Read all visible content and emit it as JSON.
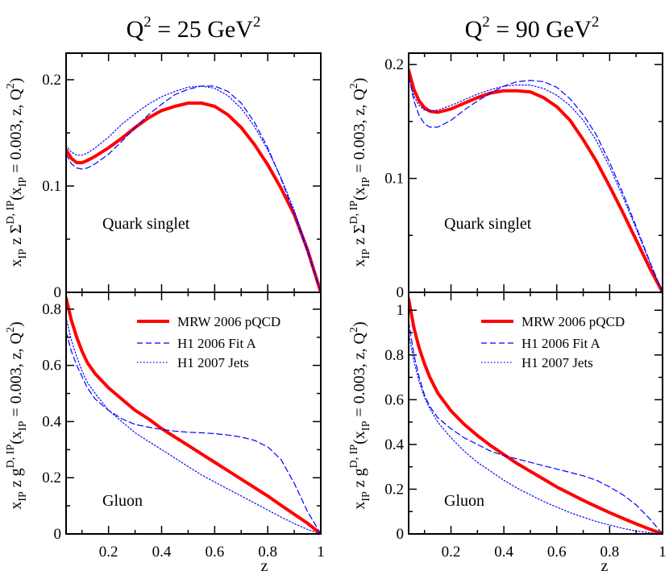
{
  "columns": [
    {
      "q2_value": "25",
      "title_text": " = 25 GeV"
    },
    {
      "q2_value": "90",
      "title_text": " = 90 GeV"
    }
  ],
  "labels": {
    "q": "Q",
    "sq": "2",
    "x_axis": "z",
    "quark_panel": "Quark singlet",
    "gluon_panel": "Gluon",
    "ylab_top_main": "x",
    "ylab_top_sub": "IP",
    "ylab_top_mid": " z Σ",
    "ylab_top_sup": "D, IP",
    "ylab_top_args": "(x",
    "ylab_top_args_sub": "IP",
    "ylab_top_args_rest": " = 0.003, z, Q",
    "ylab_top_args_sup": "2",
    "ylab_top_close": ")",
    "ylab_bot_mid": " z g"
  },
  "legend": [
    {
      "label": "MRW 2006 pQCD",
      "style": "thick-solid",
      "color": "#ff0000"
    },
    {
      "label": "H1 2006 Fit A",
      "style": "dashed",
      "color": "#0000ff"
    },
    {
      "label": "H1 2007 Jets",
      "style": "dotted",
      "color": "#0000ff"
    }
  ],
  "chart_data": [
    {
      "type": "line",
      "panel": "quark-25",
      "title": "Q² = 25 GeV²",
      "panel_label": "Quark singlet",
      "xlabel": "z",
      "ylabel": "x_IP z Σ^{D,IP}(x_IP = 0.003, z, Q²)",
      "xlim": [
        0.04,
        1.0
      ],
      "ylim": [
        0,
        0.225
      ],
      "xticks": [
        0.2,
        0.4,
        0.6,
        0.8,
        1
      ],
      "xtick_labels": [
        "",
        "",
        "",
        "",
        ""
      ],
      "yticks": [
        0,
        0.1,
        0.2
      ],
      "ytick_labels": [
        "0",
        "0.1",
        "0.2"
      ],
      "series": [
        {
          "name": "MRW 2006 pQCD",
          "x": [
            0.04,
            0.06,
            0.08,
            0.1,
            0.12,
            0.15,
            0.2,
            0.25,
            0.3,
            0.35,
            0.4,
            0.45,
            0.5,
            0.55,
            0.6,
            0.65,
            0.7,
            0.75,
            0.8,
            0.85,
            0.9,
            0.95,
            1.0
          ],
          "y": [
            0.134,
            0.126,
            0.122,
            0.122,
            0.124,
            0.128,
            0.136,
            0.145,
            0.155,
            0.164,
            0.171,
            0.175,
            0.178,
            0.178,
            0.175,
            0.167,
            0.155,
            0.139,
            0.12,
            0.098,
            0.073,
            0.04,
            0.0
          ]
        },
        {
          "name": "H1 2006 Fit A",
          "x": [
            0.04,
            0.06,
            0.08,
            0.1,
            0.12,
            0.15,
            0.2,
            0.25,
            0.3,
            0.35,
            0.4,
            0.45,
            0.5,
            0.55,
            0.6,
            0.65,
            0.7,
            0.75,
            0.8,
            0.85,
            0.9,
            0.95,
            1.0
          ],
          "y": [
            0.13,
            0.121,
            0.117,
            0.116,
            0.117,
            0.121,
            0.13,
            0.142,
            0.155,
            0.167,
            0.177,
            0.186,
            0.191,
            0.194,
            0.194,
            0.189,
            0.178,
            0.16,
            0.136,
            0.107,
            0.074,
            0.038,
            0.0
          ]
        },
        {
          "name": "H1 2007 Jets",
          "x": [
            0.04,
            0.06,
            0.08,
            0.1,
            0.12,
            0.15,
            0.2,
            0.25,
            0.3,
            0.35,
            0.4,
            0.45,
            0.5,
            0.55,
            0.6,
            0.65,
            0.7,
            0.75,
            0.8,
            0.85,
            0.9,
            0.95,
            1.0
          ],
          "y": [
            0.138,
            0.132,
            0.129,
            0.129,
            0.131,
            0.136,
            0.146,
            0.158,
            0.168,
            0.177,
            0.184,
            0.189,
            0.193,
            0.194,
            0.192,
            0.185,
            0.173,
            0.156,
            0.134,
            0.108,
            0.077,
            0.041,
            0.0
          ]
        }
      ]
    },
    {
      "type": "line",
      "panel": "quark-90",
      "title": "Q² = 90 GeV²",
      "panel_label": "Quark singlet",
      "xlabel": "z",
      "ylabel": "x_IP z Σ^{D,IP}(x_IP = 0.003, z, Q²)",
      "xlim": [
        0.04,
        1.0
      ],
      "ylim": [
        0,
        0.21
      ],
      "xticks": [
        0.2,
        0.4,
        0.6,
        0.8,
        1
      ],
      "xtick_labels": [
        "",
        "",
        "",
        "",
        ""
      ],
      "yticks": [
        0,
        0.1,
        0.2
      ],
      "ytick_labels": [
        "0",
        "0.1",
        "0.2"
      ],
      "series": [
        {
          "name": "MRW 2006 pQCD",
          "x": [
            0.04,
            0.06,
            0.08,
            0.1,
            0.12,
            0.15,
            0.2,
            0.25,
            0.3,
            0.35,
            0.4,
            0.45,
            0.5,
            0.55,
            0.6,
            0.65,
            0.7,
            0.75,
            0.8,
            0.85,
            0.9,
            0.95,
            1.0
          ],
          "y": [
            0.195,
            0.178,
            0.168,
            0.162,
            0.159,
            0.158,
            0.161,
            0.166,
            0.171,
            0.175,
            0.177,
            0.177,
            0.176,
            0.171,
            0.163,
            0.151,
            0.134,
            0.115,
            0.093,
            0.07,
            0.046,
            0.022,
            0.0
          ]
        },
        {
          "name": "H1 2006 Fit A",
          "x": [
            0.04,
            0.06,
            0.08,
            0.1,
            0.12,
            0.15,
            0.2,
            0.25,
            0.3,
            0.35,
            0.4,
            0.45,
            0.5,
            0.55,
            0.6,
            0.65,
            0.7,
            0.75,
            0.8,
            0.85,
            0.9,
            0.95,
            1.0
          ],
          "y": [
            0.19,
            0.168,
            0.155,
            0.148,
            0.145,
            0.145,
            0.151,
            0.16,
            0.168,
            0.175,
            0.181,
            0.185,
            0.186,
            0.185,
            0.18,
            0.17,
            0.156,
            0.138,
            0.114,
            0.087,
            0.058,
            0.028,
            0.0
          ]
        },
        {
          "name": "H1 2007 Jets",
          "x": [
            0.04,
            0.06,
            0.08,
            0.1,
            0.12,
            0.15,
            0.2,
            0.25,
            0.3,
            0.35,
            0.4,
            0.45,
            0.5,
            0.55,
            0.6,
            0.65,
            0.7,
            0.75,
            0.8,
            0.85,
            0.9,
            0.95,
            1.0
          ],
          "y": [
            0.188,
            0.172,
            0.164,
            0.16,
            0.159,
            0.16,
            0.164,
            0.169,
            0.174,
            0.178,
            0.181,
            0.182,
            0.182,
            0.179,
            0.173,
            0.164,
            0.151,
            0.133,
            0.11,
            0.084,
            0.056,
            0.027,
            0.0
          ]
        }
      ]
    },
    {
      "type": "line",
      "panel": "gluon-25",
      "title": "",
      "panel_label": "Gluon",
      "xlabel": "z",
      "ylabel": "x_IP z g^{D,IP}(x_IP = 0.003, z, Q²)",
      "xlim": [
        0.04,
        1.0
      ],
      "ylim": [
        0,
        0.86
      ],
      "xticks": [
        0.2,
        0.4,
        0.6,
        0.8,
        1
      ],
      "xtick_labels": [
        "0.2",
        "0.4",
        "0.6",
        "0.8",
        "1"
      ],
      "yticks": [
        0,
        0.2,
        0.4,
        0.6,
        0.8
      ],
      "ytick_labels": [
        "0",
        "0.2",
        "0.4",
        "0.6",
        "0.8"
      ],
      "series": [
        {
          "name": "MRW 2006 pQCD",
          "x": [
            0.04,
            0.06,
            0.08,
            0.1,
            0.12,
            0.15,
            0.2,
            0.25,
            0.3,
            0.35,
            0.4,
            0.45,
            0.5,
            0.55,
            0.6,
            0.65,
            0.7,
            0.75,
            0.8,
            0.85,
            0.9,
            0.95,
            1.0
          ],
          "y": [
            0.84,
            0.76,
            0.7,
            0.65,
            0.61,
            0.57,
            0.52,
            0.48,
            0.44,
            0.41,
            0.375,
            0.345,
            0.315,
            0.285,
            0.255,
            0.225,
            0.195,
            0.165,
            0.135,
            0.102,
            0.07,
            0.038,
            0.0
          ]
        },
        {
          "name": "H1 2006 Fit A",
          "x": [
            0.04,
            0.06,
            0.08,
            0.1,
            0.12,
            0.15,
            0.2,
            0.25,
            0.3,
            0.35,
            0.4,
            0.45,
            0.5,
            0.55,
            0.6,
            0.65,
            0.7,
            0.75,
            0.8,
            0.85,
            0.9,
            0.95,
            1.0
          ],
          "y": [
            0.72,
            0.65,
            0.6,
            0.56,
            0.52,
            0.48,
            0.44,
            0.41,
            0.39,
            0.38,
            0.372,
            0.366,
            0.362,
            0.36,
            0.357,
            0.352,
            0.345,
            0.333,
            0.31,
            0.265,
            0.18,
            0.08,
            0.0
          ]
        },
        {
          "name": "H1 2007 Jets",
          "x": [
            0.04,
            0.06,
            0.08,
            0.1,
            0.12,
            0.15,
            0.2,
            0.25,
            0.3,
            0.35,
            0.4,
            0.45,
            0.5,
            0.55,
            0.6,
            0.65,
            0.7,
            0.75,
            0.8,
            0.85,
            0.9,
            0.95,
            1.0
          ],
          "y": [
            0.77,
            0.69,
            0.63,
            0.58,
            0.54,
            0.5,
            0.44,
            0.4,
            0.36,
            0.33,
            0.3,
            0.27,
            0.24,
            0.21,
            0.185,
            0.16,
            0.135,
            0.11,
            0.085,
            0.06,
            0.037,
            0.016,
            0.0
          ]
        }
      ]
    },
    {
      "type": "line",
      "panel": "gluon-90",
      "title": "",
      "panel_label": "Gluon",
      "xlabel": "z",
      "ylabel": "x_IP z g^{D,IP}(x_IP = 0.003, z, Q²)",
      "xlim": [
        0.04,
        1.0
      ],
      "ylim": [
        0,
        1.08
      ],
      "xticks": [
        0.2,
        0.4,
        0.6,
        0.8,
        1
      ],
      "xtick_labels": [
        "0.2",
        "0.4",
        "0.6",
        "0.8",
        "1"
      ],
      "yticks": [
        0,
        0.2,
        0.4,
        0.6,
        0.8,
        1
      ],
      "ytick_labels": [
        "0",
        "0.2",
        "0.4",
        "0.6",
        "0.8",
        "1"
      ],
      "series": [
        {
          "name": "MRW 2006 pQCD",
          "x": [
            0.04,
            0.06,
            0.08,
            0.1,
            0.12,
            0.15,
            0.2,
            0.25,
            0.3,
            0.35,
            0.4,
            0.45,
            0.5,
            0.55,
            0.6,
            0.65,
            0.7,
            0.75,
            0.8,
            0.85,
            0.9,
            0.95,
            1.0
          ],
          "y": [
            1.05,
            0.92,
            0.83,
            0.76,
            0.7,
            0.63,
            0.55,
            0.49,
            0.44,
            0.395,
            0.355,
            0.315,
            0.28,
            0.245,
            0.21,
            0.18,
            0.15,
            0.122,
            0.095,
            0.07,
            0.045,
            0.022,
            0.0
          ]
        },
        {
          "name": "H1 2006 Fit A",
          "x": [
            0.04,
            0.06,
            0.08,
            0.1,
            0.12,
            0.15,
            0.2,
            0.25,
            0.3,
            0.35,
            0.4,
            0.45,
            0.5,
            0.55,
            0.6,
            0.65,
            0.7,
            0.75,
            0.8,
            0.85,
            0.9,
            0.95,
            1.0
          ],
          "y": [
            0.95,
            0.8,
            0.7,
            0.62,
            0.57,
            0.52,
            0.47,
            0.43,
            0.4,
            0.37,
            0.35,
            0.335,
            0.32,
            0.305,
            0.29,
            0.275,
            0.26,
            0.24,
            0.21,
            0.175,
            0.13,
            0.07,
            0.0
          ]
        },
        {
          "name": "H1 2007 Jets",
          "x": [
            0.04,
            0.06,
            0.08,
            0.1,
            0.12,
            0.15,
            0.2,
            0.25,
            0.3,
            0.35,
            0.4,
            0.45,
            0.5,
            0.55,
            0.6,
            0.65,
            0.7,
            0.75,
            0.8,
            0.85,
            0.9,
            0.95,
            1.0
          ],
          "y": [
            0.9,
            0.77,
            0.68,
            0.61,
            0.56,
            0.5,
            0.43,
            0.37,
            0.32,
            0.28,
            0.24,
            0.205,
            0.175,
            0.145,
            0.12,
            0.095,
            0.075,
            0.055,
            0.04,
            0.025,
            0.013,
            0.005,
            0.0
          ]
        }
      ]
    }
  ]
}
